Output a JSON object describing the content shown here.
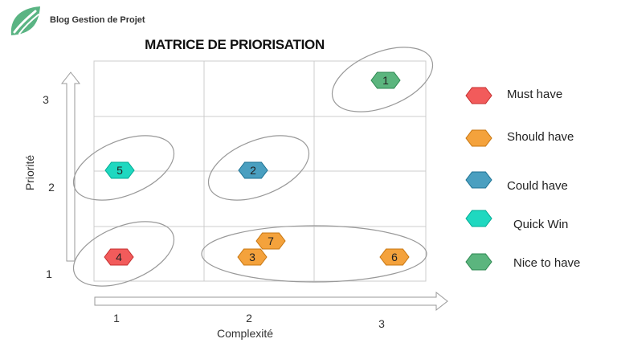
{
  "logo": {
    "text": "Blog Gestion de Projet",
    "icon": "leaf-icon",
    "color": "#5ab483"
  },
  "title": "MATRICE DE PRIORISATION",
  "axes": {
    "x_label": "Complexité",
    "y_label": "Priorité",
    "x_ticks": [
      "1",
      "2",
      "3"
    ],
    "y_ticks": [
      "3",
      "2",
      "1"
    ]
  },
  "legend": [
    {
      "label": "Must have",
      "color": "#f25b5b"
    },
    {
      "label": "Should have",
      "color": "#f4a23c"
    },
    {
      "label": "Could have",
      "color": "#4a9fc0"
    },
    {
      "label": "Quick Win",
      "color": "#1fd8c0"
    },
    {
      "label": "Nice to have",
      "color": "#5bb57e"
    }
  ],
  "items": [
    {
      "id": "1",
      "category": "Nice to have",
      "complexity": 3,
      "priority": 3
    },
    {
      "id": "2",
      "category": "Could have",
      "complexity": 2,
      "priority": 2
    },
    {
      "id": "3",
      "category": "Should have",
      "complexity": 2,
      "priority": 1
    },
    {
      "id": "4",
      "category": "Must have",
      "complexity": 1,
      "priority": 1
    },
    {
      "id": "5",
      "category": "Quick Win",
      "complexity": 1,
      "priority": 2
    },
    {
      "id": "6",
      "category": "Should have",
      "complexity": 3,
      "priority": 1
    },
    {
      "id": "7",
      "category": "Should have",
      "complexity": 2,
      "priority": 1
    }
  ],
  "groups": [
    {
      "name": "nice-to-have-group",
      "members": [
        "1"
      ]
    },
    {
      "name": "quick-win-group",
      "members": [
        "5"
      ]
    },
    {
      "name": "could-have-group",
      "members": [
        "2"
      ]
    },
    {
      "name": "must-have-group",
      "members": [
        "4"
      ]
    },
    {
      "name": "should-have-group",
      "members": [
        "3",
        "7",
        "6"
      ]
    }
  ]
}
